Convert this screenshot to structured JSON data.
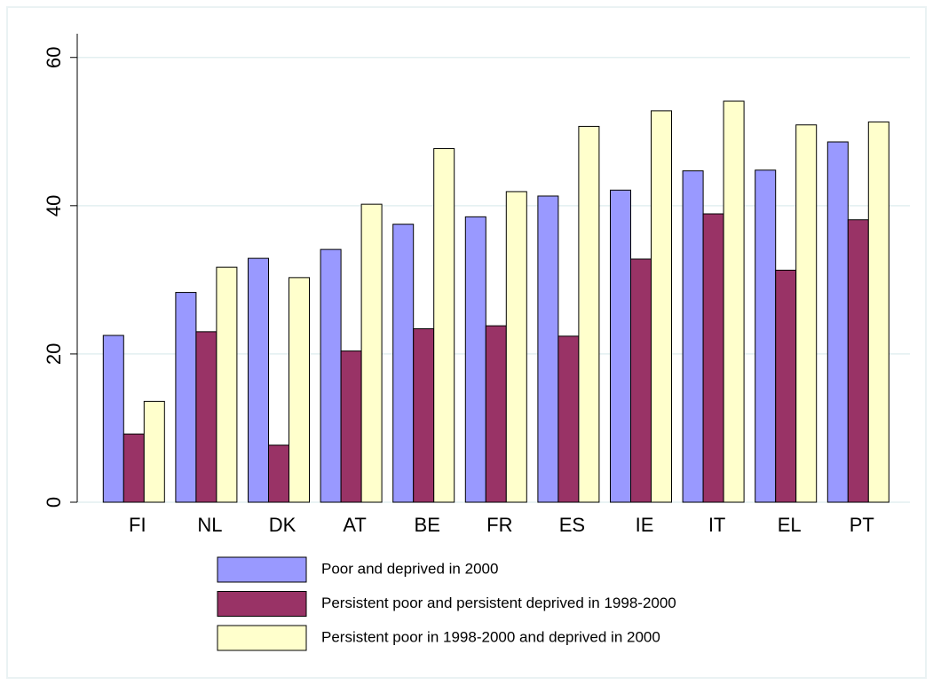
{
  "chart_data": {
    "type": "bar",
    "categories": [
      "FI",
      "NL",
      "DK",
      "AT",
      "BE",
      "FR",
      "ES",
      "IE",
      "IT",
      "EL",
      "PT"
    ],
    "series": [
      {
        "name": "Poor and deprived in 2000",
        "color": "#9999ff",
        "values": [
          22.5,
          28.3,
          32.9,
          34.1,
          37.5,
          38.5,
          41.3,
          42.1,
          44.7,
          44.8,
          48.6
        ]
      },
      {
        "name": "Persistent poor and persistent deprived in 1998-2000",
        "color": "#993366",
        "values": [
          9.2,
          23.0,
          7.7,
          20.4,
          23.4,
          23.8,
          22.4,
          32.8,
          38.9,
          31.3,
          38.1
        ]
      },
      {
        "name": "Persistent poor in 1998-2000 and deprived in 2000",
        "color": "#ffffcc",
        "values": [
          13.6,
          31.7,
          30.3,
          40.2,
          47.7,
          41.9,
          50.7,
          52.8,
          54.1,
          50.9,
          51.3
        ]
      }
    ],
    "ylim": [
      0,
      63.2
    ],
    "yticks": [
      0,
      20,
      40,
      60
    ],
    "grid": true,
    "legend": "bottom"
  }
}
